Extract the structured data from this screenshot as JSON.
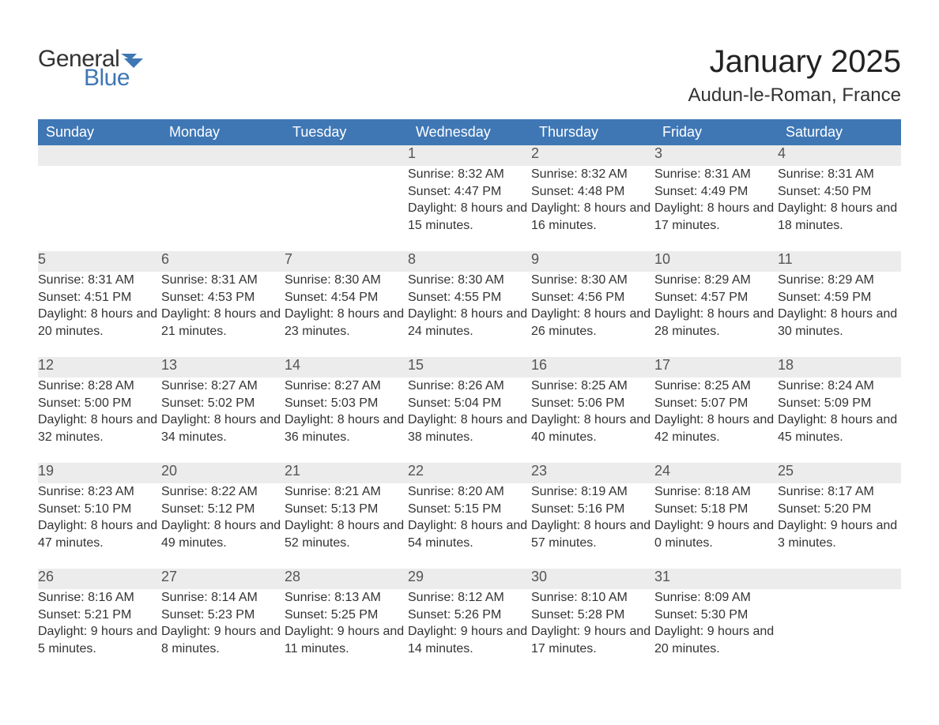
{
  "logo": {
    "word1": "General",
    "word2": "Blue"
  },
  "title": "January 2025",
  "location": "Audun-le-Roman, France",
  "colors": {
    "brand_blue": "#3f77b5",
    "row_stripe": "#ececec",
    "background": "#ffffff",
    "text": "#333333"
  },
  "weekdays": [
    "Sunday",
    "Monday",
    "Tuesday",
    "Wednesday",
    "Thursday",
    "Friday",
    "Saturday"
  ],
  "weeks": [
    [
      null,
      null,
      null,
      {
        "n": "1",
        "sunrise": "8:32 AM",
        "sunset": "4:47 PM",
        "daylight": "8 hours and 15 minutes."
      },
      {
        "n": "2",
        "sunrise": "8:32 AM",
        "sunset": "4:48 PM",
        "daylight": "8 hours and 16 minutes."
      },
      {
        "n": "3",
        "sunrise": "8:31 AM",
        "sunset": "4:49 PM",
        "daylight": "8 hours and 17 minutes."
      },
      {
        "n": "4",
        "sunrise": "8:31 AM",
        "sunset": "4:50 PM",
        "daylight": "8 hours and 18 minutes."
      }
    ],
    [
      {
        "n": "5",
        "sunrise": "8:31 AM",
        "sunset": "4:51 PM",
        "daylight": "8 hours and 20 minutes."
      },
      {
        "n": "6",
        "sunrise": "8:31 AM",
        "sunset": "4:53 PM",
        "daylight": "8 hours and 21 minutes."
      },
      {
        "n": "7",
        "sunrise": "8:30 AM",
        "sunset": "4:54 PM",
        "daylight": "8 hours and 23 minutes."
      },
      {
        "n": "8",
        "sunrise": "8:30 AM",
        "sunset": "4:55 PM",
        "daylight": "8 hours and 24 minutes."
      },
      {
        "n": "9",
        "sunrise": "8:30 AM",
        "sunset": "4:56 PM",
        "daylight": "8 hours and 26 minutes."
      },
      {
        "n": "10",
        "sunrise": "8:29 AM",
        "sunset": "4:57 PM",
        "daylight": "8 hours and 28 minutes."
      },
      {
        "n": "11",
        "sunrise": "8:29 AM",
        "sunset": "4:59 PM",
        "daylight": "8 hours and 30 minutes."
      }
    ],
    [
      {
        "n": "12",
        "sunrise": "8:28 AM",
        "sunset": "5:00 PM",
        "daylight": "8 hours and 32 minutes."
      },
      {
        "n": "13",
        "sunrise": "8:27 AM",
        "sunset": "5:02 PM",
        "daylight": "8 hours and 34 minutes."
      },
      {
        "n": "14",
        "sunrise": "8:27 AM",
        "sunset": "5:03 PM",
        "daylight": "8 hours and 36 minutes."
      },
      {
        "n": "15",
        "sunrise": "8:26 AM",
        "sunset": "5:04 PM",
        "daylight": "8 hours and 38 minutes."
      },
      {
        "n": "16",
        "sunrise": "8:25 AM",
        "sunset": "5:06 PM",
        "daylight": "8 hours and 40 minutes."
      },
      {
        "n": "17",
        "sunrise": "8:25 AM",
        "sunset": "5:07 PM",
        "daylight": "8 hours and 42 minutes."
      },
      {
        "n": "18",
        "sunrise": "8:24 AM",
        "sunset": "5:09 PM",
        "daylight": "8 hours and 45 minutes."
      }
    ],
    [
      {
        "n": "19",
        "sunrise": "8:23 AM",
        "sunset": "5:10 PM",
        "daylight": "8 hours and 47 minutes."
      },
      {
        "n": "20",
        "sunrise": "8:22 AM",
        "sunset": "5:12 PM",
        "daylight": "8 hours and 49 minutes."
      },
      {
        "n": "21",
        "sunrise": "8:21 AM",
        "sunset": "5:13 PM",
        "daylight": "8 hours and 52 minutes."
      },
      {
        "n": "22",
        "sunrise": "8:20 AM",
        "sunset": "5:15 PM",
        "daylight": "8 hours and 54 minutes."
      },
      {
        "n": "23",
        "sunrise": "8:19 AM",
        "sunset": "5:16 PM",
        "daylight": "8 hours and 57 minutes."
      },
      {
        "n": "24",
        "sunrise": "8:18 AM",
        "sunset": "5:18 PM",
        "daylight": "9 hours and 0 minutes."
      },
      {
        "n": "25",
        "sunrise": "8:17 AM",
        "sunset": "5:20 PM",
        "daylight": "9 hours and 3 minutes."
      }
    ],
    [
      {
        "n": "26",
        "sunrise": "8:16 AM",
        "sunset": "5:21 PM",
        "daylight": "9 hours and 5 minutes."
      },
      {
        "n": "27",
        "sunrise": "8:14 AM",
        "sunset": "5:23 PM",
        "daylight": "9 hours and 8 minutes."
      },
      {
        "n": "28",
        "sunrise": "8:13 AM",
        "sunset": "5:25 PM",
        "daylight": "9 hours and 11 minutes."
      },
      {
        "n": "29",
        "sunrise": "8:12 AM",
        "sunset": "5:26 PM",
        "daylight": "9 hours and 14 minutes."
      },
      {
        "n": "30",
        "sunrise": "8:10 AM",
        "sunset": "5:28 PM",
        "daylight": "9 hours and 17 minutes."
      },
      {
        "n": "31",
        "sunrise": "8:09 AM",
        "sunset": "5:30 PM",
        "daylight": "9 hours and 20 minutes."
      },
      null
    ]
  ],
  "labels": {
    "sunrise": "Sunrise: ",
    "sunset": "Sunset: ",
    "daylight": "Daylight: "
  },
  "typography": {
    "title_fontsize": 40,
    "location_fontsize": 24,
    "header_fontsize": 18,
    "daynum_fontsize": 18,
    "body_fontsize": 16
  }
}
